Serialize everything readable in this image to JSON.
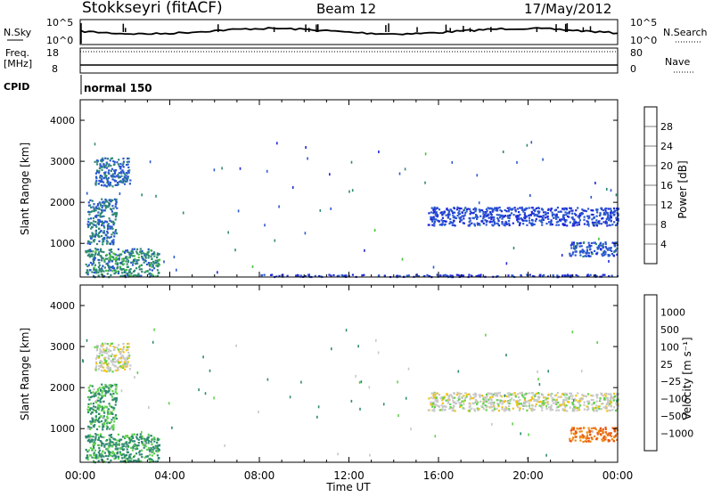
{
  "header": {
    "station": "Stokkseyri (fitACF)",
    "beam": "Beam 12",
    "date": "17/May/2012"
  },
  "nsky_panel": {
    "left_label": "N.Sky",
    "left_ticks": [
      "10^5",
      "10^0"
    ],
    "right_ticks": [
      "10^5",
      "10^0"
    ],
    "right_label": "N.Search"
  },
  "freq_panel": {
    "left_label_top": "Freq.",
    "left_label_unit": "[MHz]",
    "left_ticks": [
      "18",
      "8"
    ],
    "right_ticks": [
      "80",
      "0"
    ],
    "right_label": "Nave"
  },
  "cpid_panel": {
    "label": "CPID",
    "mode": "normal 150"
  },
  "colors": {
    "power_scale": [
      "#1f28d8",
      "#2a58d0",
      "#2f8a74",
      "#46c23a",
      "#f0c20c",
      "#f28a14",
      "#ee5b12",
      "#e31010"
    ],
    "velocity_scale": [
      "#2a3ad0",
      "#2f73c8",
      "#2f8a70",
      "#5fd24a",
      "#c8c8c8",
      "#f2c40e",
      "#f08a14",
      "#e85814",
      "#e01010"
    ]
  },
  "chart_data": [
    {
      "type": "heatmap",
      "name": "power",
      "xlabel": "",
      "ylabel": "Slant Range [km]",
      "x_ticks": [
        "00:00",
        "04:00",
        "08:00",
        "12:00",
        "16:00",
        "20:00",
        "00:00"
      ],
      "x_range_hours": [
        0,
        24
      ],
      "y_ticks": [
        1000,
        2000,
        3000,
        4000
      ],
      "ylim": [
        180,
        4500
      ],
      "colorbar": {
        "label": "Power [dB]",
        "ticks": [
          "4",
          "8",
          "12",
          "16",
          "20",
          "24",
          "28"
        ],
        "range": [
          0,
          32
        ]
      },
      "echo_regions": [
        {
          "t": [
            0.3,
            1.6
          ],
          "r": [
            1000,
            2100
          ],
          "value": 8
        },
        {
          "t": [
            0.6,
            2.2
          ],
          "r": [
            2400,
            3100
          ],
          "value": 7
        },
        {
          "t": [
            0.2,
            3.5
          ],
          "r": [
            200,
            900
          ],
          "value": 10
        },
        {
          "t": [
            15.5,
            24.0
          ],
          "r": [
            1450,
            1900
          ],
          "value": 5
        },
        {
          "t": [
            21.8,
            24.0
          ],
          "r": [
            700,
            1050
          ],
          "value": 6
        },
        {
          "t": [
            8.0,
            24.0
          ],
          "r": [
            200,
            260
          ],
          "value": 4
        }
      ]
    },
    {
      "type": "heatmap",
      "name": "velocity",
      "xlabel": "Time UT",
      "ylabel": "Slant Range [km]",
      "x_ticks": [
        "00:00",
        "04:00",
        "08:00",
        "12:00",
        "16:00",
        "20:00",
        "00:00"
      ],
      "x_range_hours": [
        0,
        24
      ],
      "y_ticks": [
        1000,
        2000,
        3000,
        4000
      ],
      "ylim": [
        180,
        4500
      ],
      "colorbar": {
        "label": "Velocity [m s⁻¹]",
        "ticks": [
          "1000",
          "500",
          "100",
          "25",
          "−25",
          "−100",
          "−500",
          "−1000"
        ]
      },
      "echo_regions": [
        {
          "t": [
            0.3,
            1.6
          ],
          "r": [
            1000,
            2100
          ],
          "value": 60
        },
        {
          "t": [
            0.6,
            2.2
          ],
          "r": [
            2400,
            3100
          ],
          "value": 0
        },
        {
          "t": [
            0.2,
            3.5
          ],
          "r": [
            200,
            900
          ],
          "value": 80
        },
        {
          "t": [
            15.5,
            24.0
          ],
          "r": [
            1450,
            1900
          ],
          "value": 0
        },
        {
          "t": [
            21.8,
            24.0
          ],
          "r": [
            700,
            1050
          ],
          "value": -300
        }
      ]
    }
  ]
}
